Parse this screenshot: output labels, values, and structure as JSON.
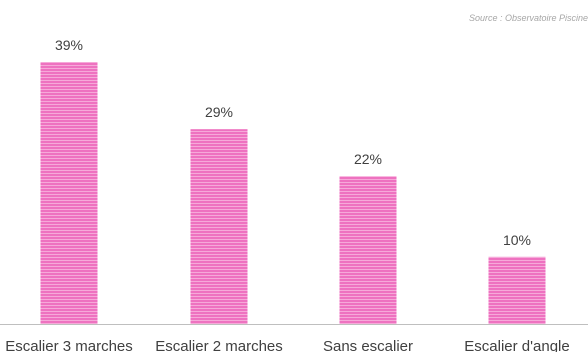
{
  "source_note": "Source : Observatoire Piscine",
  "chart_data": {
    "type": "bar",
    "categories": [
      "Escalier 3 marches",
      "Escalier 2 marches",
      "Sans escalier",
      "Escalier d'angle"
    ],
    "values": [
      39,
      29,
      22,
      10
    ],
    "value_labels": [
      "39%",
      "29%",
      "22%",
      "10%"
    ],
    "title": "",
    "xlabel": "",
    "ylabel": "",
    "ylim": [
      0,
      45
    ],
    "grid": false,
    "legend": "none",
    "bar_color": "#ee72c0",
    "bar_stripe_color": "#f6a9d9",
    "axis_color": "#bfbfbf",
    "label_color": "#404040"
  }
}
